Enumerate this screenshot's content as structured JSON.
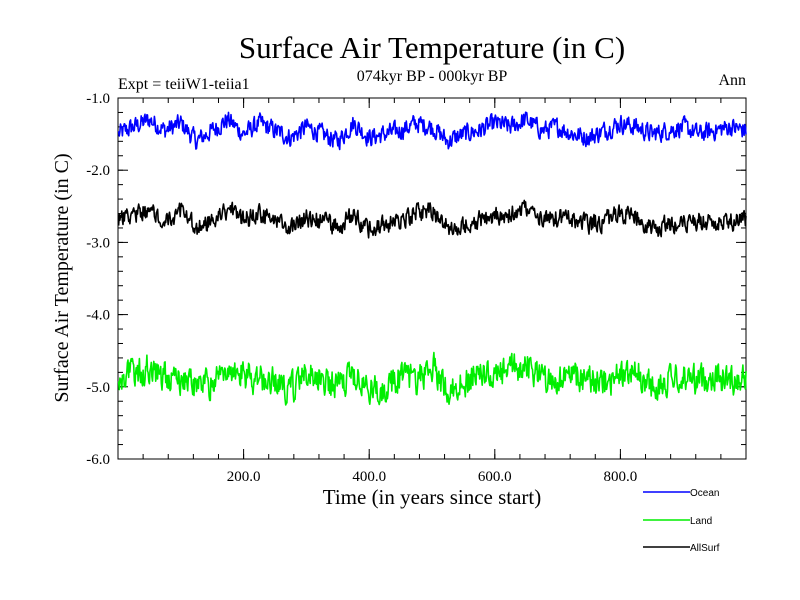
{
  "chart_data": {
    "type": "line",
    "title": "Surface Air Temperature (in C)",
    "subtitle": "074kyr BP - 000kyr BP",
    "left_label": "Expt = teiiW1-teiia1",
    "right_label": "Ann",
    "xlabel": "Time (in years since start)",
    "ylabel": "Surface Air Temperature (in C)",
    "xlim": [
      0,
      1000
    ],
    "ylim": [
      -6.0,
      -1.0
    ],
    "x_ticks": [
      {
        "value": 200,
        "label": "200.0"
      },
      {
        "value": 400,
        "label": "400.0"
      },
      {
        "value": 600,
        "label": "600.0"
      },
      {
        "value": 800,
        "label": "800.0"
      }
    ],
    "y_ticks": [
      {
        "value": -1.0,
        "label": "-1.0"
      },
      {
        "value": -2.0,
        "label": "-2.0"
      },
      {
        "value": -3.0,
        "label": "-3.0"
      },
      {
        "value": -4.0,
        "label": "-4.0"
      },
      {
        "value": -5.0,
        "label": "-5.0"
      },
      {
        "value": -6.0,
        "label": "-6.0"
      }
    ],
    "grid": false,
    "legend_position": "bottom-right",
    "series": [
      {
        "name": "Ocean",
        "color": "#0000ff",
        "x": [
          0,
          25,
          50,
          75,
          100,
          125,
          150,
          175,
          200,
          225,
          250,
          275,
          300,
          325,
          350,
          375,
          400,
          425,
          450,
          475,
          500,
          525,
          550,
          575,
          600,
          625,
          650,
          675,
          700,
          725,
          750,
          775,
          800,
          825,
          850,
          875,
          900,
          925,
          950,
          975,
          1000
        ],
        "y": [
          -1.5,
          -1.4,
          -1.3,
          -1.45,
          -1.35,
          -1.6,
          -1.45,
          -1.3,
          -1.5,
          -1.35,
          -1.45,
          -1.55,
          -1.4,
          -1.5,
          -1.6,
          -1.35,
          -1.55,
          -1.5,
          -1.45,
          -1.35,
          -1.4,
          -1.6,
          -1.5,
          -1.45,
          -1.35,
          -1.4,
          -1.3,
          -1.45,
          -1.4,
          -1.5,
          -1.55,
          -1.45,
          -1.35,
          -1.4,
          -1.5,
          -1.45,
          -1.4,
          -1.5,
          -1.45,
          -1.4,
          -1.45
        ]
      },
      {
        "name": "Land",
        "color": "#00ee00",
        "x": [
          0,
          25,
          50,
          75,
          100,
          125,
          150,
          175,
          200,
          225,
          250,
          275,
          300,
          325,
          350,
          375,
          400,
          425,
          450,
          475,
          500,
          525,
          550,
          575,
          600,
          625,
          650,
          675,
          700,
          725,
          750,
          775,
          800,
          825,
          850,
          875,
          900,
          925,
          950,
          975,
          1000
        ],
        "y": [
          -4.9,
          -4.8,
          -4.75,
          -4.85,
          -4.9,
          -5.0,
          -4.95,
          -4.7,
          -4.85,
          -4.9,
          -4.95,
          -5.05,
          -4.8,
          -4.9,
          -5.0,
          -4.85,
          -5.05,
          -5.0,
          -4.85,
          -4.9,
          -4.7,
          -5.05,
          -4.95,
          -4.8,
          -4.9,
          -4.75,
          -4.7,
          -4.85,
          -4.9,
          -4.85,
          -4.9,
          -4.95,
          -4.85,
          -4.8,
          -5.0,
          -4.95,
          -4.85,
          -4.9,
          -4.85,
          -4.9,
          -4.85
        ]
      },
      {
        "name": "AllSurf",
        "color": "#000000",
        "x": [
          0,
          25,
          50,
          75,
          100,
          125,
          150,
          175,
          200,
          225,
          250,
          275,
          300,
          325,
          350,
          375,
          400,
          425,
          450,
          475,
          500,
          525,
          550,
          575,
          600,
          625,
          650,
          675,
          700,
          725,
          750,
          775,
          800,
          825,
          850,
          875,
          900,
          925,
          950,
          975,
          1000
        ],
        "y": [
          -2.7,
          -2.6,
          -2.55,
          -2.65,
          -2.6,
          -2.8,
          -2.7,
          -2.55,
          -2.7,
          -2.6,
          -2.7,
          -2.8,
          -2.65,
          -2.7,
          -2.8,
          -2.6,
          -2.85,
          -2.75,
          -2.7,
          -2.6,
          -2.55,
          -2.8,
          -2.75,
          -2.7,
          -2.65,
          -2.6,
          -2.55,
          -2.7,
          -2.65,
          -2.7,
          -2.75,
          -2.7,
          -2.6,
          -2.65,
          -2.85,
          -2.75,
          -2.7,
          -2.7,
          -2.75,
          -2.7,
          -2.7
        ]
      }
    ]
  }
}
